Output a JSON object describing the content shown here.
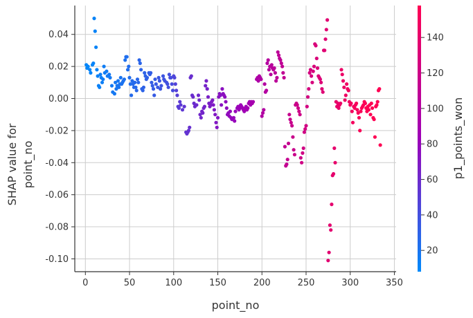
{
  "chart_data": {
    "type": "scatter",
    "xlabel": "point_no",
    "ylabel": [
      "SHAP value for",
      "point_no"
    ],
    "xlim": [
      -12,
      352
    ],
    "ylim": [
      -0.108,
      0.058
    ],
    "x_ticks": [
      0,
      50,
      100,
      150,
      200,
      250,
      300,
      350
    ],
    "x_tick_labels": [
      "0",
      "50",
      "100",
      "150",
      "200",
      "250",
      "300",
      "350"
    ],
    "y_ticks": [
      0.04,
      0.02,
      0.0,
      -0.02,
      -0.04,
      -0.06,
      -0.08,
      -0.1
    ],
    "y_tick_labels": [
      "0.04",
      "0.02",
      "0.00",
      "-0.02",
      "-0.04",
      "-0.06",
      "-0.08",
      "-0.10"
    ],
    "grid": true,
    "colorbar": {
      "label": "p1_points_won",
      "range": [
        8,
        158
      ],
      "ticks": [
        20,
        40,
        60,
        80,
        100,
        120,
        140
      ],
      "tick_labels": [
        "20",
        "40",
        "60",
        "80",
        "100",
        "120",
        "140"
      ],
      "low_color": "#008afb",
      "mid_color": "#9d00b8",
      "high_color": "#ff0052"
    },
    "points": [
      [
        1,
        0.021,
        10
      ],
      [
        2,
        0.019,
        10
      ],
      [
        3,
        0.02,
        10
      ],
      [
        5,
        0.018,
        11
      ],
      [
        6,
        0.016,
        11
      ],
      [
        8,
        0.021,
        11
      ],
      [
        9,
        0.022,
        11
      ],
      [
        10,
        0.05,
        12
      ],
      [
        11,
        0.042,
        12
      ],
      [
        12,
        0.032,
        12
      ],
      [
        13,
        0.018,
        12
      ],
      [
        14,
        0.014,
        13
      ],
      [
        15,
        0.008,
        13
      ],
      [
        16,
        0.007,
        13
      ],
      [
        17,
        0.015,
        14
      ],
      [
        18,
        0.013,
        14
      ],
      [
        19,
        0.01,
        14
      ],
      [
        20,
        0.012,
        15
      ],
      [
        21,
        0.02,
        15
      ],
      [
        22,
        0.016,
        15
      ],
      [
        24,
        0.017,
        16
      ],
      [
        25,
        0.014,
        16
      ],
      [
        27,
        0.015,
        17
      ],
      [
        28,
        0.013,
        17
      ],
      [
        30,
        0.008,
        17
      ],
      [
        31,
        0.004,
        18
      ],
      [
        33,
        0.003,
        18
      ],
      [
        34,
        0.01,
        18
      ],
      [
        35,
        0.006,
        19
      ],
      [
        36,
        0.008,
        19
      ],
      [
        37,
        0.011,
        19
      ],
      [
        38,
        0.007,
        20
      ],
      [
        39,
        0.009,
        20
      ],
      [
        40,
        0.013,
        20
      ],
      [
        41,
        0.009,
        21
      ],
      [
        42,
        0.01,
        21
      ],
      [
        43,
        0.011,
        21
      ],
      [
        44,
        0.012,
        22
      ],
      [
        45,
        0.024,
        22
      ],
      [
        46,
        0.026,
        23
      ],
      [
        47,
        0.026,
        23
      ],
      [
        48,
        0.018,
        23
      ],
      [
        49,
        0.02,
        24
      ],
      [
        50,
        0.013,
        24
      ],
      [
        51,
        0.009,
        24
      ],
      [
        52,
        0.002,
        25
      ],
      [
        53,
        0.011,
        25
      ],
      [
        54,
        0.009,
        25
      ],
      [
        55,
        0.007,
        26
      ],
      [
        56,
        0.01,
        26
      ],
      [
        57,
        0.007,
        26
      ],
      [
        58,
        0.005,
        27
      ],
      [
        59,
        0.012,
        27
      ],
      [
        60,
        0.01,
        27
      ],
      [
        61,
        0.024,
        28
      ],
      [
        62,
        0.022,
        28
      ],
      [
        63,
        0.018,
        29
      ],
      [
        64,
        0.006,
        29
      ],
      [
        65,
        0.005,
        29
      ],
      [
        66,
        0.007,
        30
      ],
      [
        67,
        0.016,
        30
      ],
      [
        68,
        0.014,
        30
      ],
      [
        69,
        0.012,
        31
      ],
      [
        70,
        0.013,
        31
      ],
      [
        72,
        0.016,
        32
      ],
      [
        73,
        0.015,
        32
      ],
      [
        74,
        0.016,
        32
      ],
      [
        75,
        0.01,
        33
      ],
      [
        76,
        0.008,
        33
      ],
      [
        77,
        0.006,
        34
      ],
      [
        78,
        0.002,
        34
      ],
      [
        79,
        0.012,
        34
      ],
      [
        80,
        0.009,
        35
      ],
      [
        82,
        0.007,
        35
      ],
      [
        83,
        0.013,
        36
      ],
      [
        84,
        0.011,
        36
      ],
      [
        85,
        0.006,
        36
      ],
      [
        86,
        0.008,
        37
      ],
      [
        88,
        0.014,
        37
      ],
      [
        89,
        0.012,
        38
      ],
      [
        90,
        0.011,
        38
      ],
      [
        92,
        0.01,
        39
      ],
      [
        93,
        0.009,
        39
      ],
      [
        94,
        0.007,
        40
      ],
      [
        95,
        0.015,
        40
      ],
      [
        96,
        0.013,
        41
      ],
      [
        97,
        0.013,
        41
      ],
      [
        98,
        0.009,
        42
      ],
      [
        99,
        0.005,
        42
      ],
      [
        100,
        0.014,
        45
      ],
      [
        101,
        0.013,
        46
      ],
      [
        102,
        0.009,
        47
      ],
      [
        103,
        0.005,
        48
      ],
      [
        104,
        0.002,
        49
      ],
      [
        105,
        -0.005,
        50
      ],
      [
        106,
        -0.006,
        51
      ],
      [
        107,
        -0.002,
        52
      ],
      [
        108,
        -0.004,
        52
      ],
      [
        110,
        -0.007,
        53
      ],
      [
        112,
        -0.005,
        54
      ],
      [
        114,
        -0.021,
        55
      ],
      [
        115,
        -0.022,
        55
      ],
      [
        116,
        -0.021,
        56
      ],
      [
        117,
        -0.02,
        56
      ],
      [
        118,
        -0.018,
        57
      ],
      [
        119,
        0.013,
        57
      ],
      [
        120,
        0.014,
        58
      ],
      [
        121,
        0.002,
        58
      ],
      [
        122,
        0.001,
        59
      ],
      [
        123,
        -0.003,
        59
      ],
      [
        124,
        -0.005,
        60
      ],
      [
        126,
        -0.004,
        60
      ],
      [
        128,
        0.002,
        61
      ],
      [
        129,
        -0.001,
        61
      ],
      [
        130,
        -0.01,
        62
      ],
      [
        131,
        -0.012,
        62
      ],
      [
        132,
        -0.008,
        63
      ],
      [
        133,
        -0.009,
        63
      ],
      [
        134,
        -0.006,
        63
      ],
      [
        135,
        -0.005,
        64
      ],
      [
        136,
        0.008,
        64
      ],
      [
        137,
        0.011,
        65
      ],
      [
        138,
        0.006,
        65
      ],
      [
        139,
        0.001,
        66
      ],
      [
        140,
        -0.003,
        66
      ],
      [
        141,
        -0.005,
        67
      ],
      [
        142,
        -0.004,
        67
      ],
      [
        143,
        -0.002,
        68
      ],
      [
        144,
        -0.001,
        68
      ],
      [
        145,
        -0.004,
        69
      ],
      [
        146,
        -0.007,
        69
      ],
      [
        147,
        -0.01,
        70
      ],
      [
        148,
        -0.015,
        70
      ],
      [
        149,
        -0.018,
        71
      ],
      [
        150,
        -0.012,
        71
      ],
      [
        151,
        0.001,
        72
      ],
      [
        152,
        0.003,
        72
      ],
      [
        153,
        0.002,
        73
      ],
      [
        154,
        -0.004,
        73
      ],
      [
        155,
        0.006,
        74
      ],
      [
        156,
        0.003,
        74
      ],
      [
        157,
        0.002,
        75
      ],
      [
        158,
        0.001,
        75
      ],
      [
        159,
        -0.002,
        76
      ],
      [
        160,
        -0.006,
        76
      ],
      [
        161,
        -0.01,
        77
      ],
      [
        162,
        -0.009,
        77
      ],
      [
        163,
        -0.011,
        78
      ],
      [
        164,
        -0.008,
        78
      ],
      [
        165,
        -0.012,
        79
      ],
      [
        166,
        -0.013,
        79
      ],
      [
        168,
        -0.012,
        80
      ],
      [
        169,
        -0.014,
        80
      ],
      [
        170,
        -0.008,
        81
      ],
      [
        172,
        -0.006,
        81
      ],
      [
        173,
        -0.005,
        82
      ],
      [
        174,
        -0.007,
        82
      ],
      [
        175,
        -0.006,
        83
      ],
      [
        176,
        -0.004,
        83
      ],
      [
        177,
        -0.005,
        84
      ],
      [
        178,
        -0.006,
        84
      ],
      [
        179,
        -0.007,
        85
      ],
      [
        180,
        -0.008,
        85
      ],
      [
        181,
        -0.006,
        86
      ],
      [
        182,
        -0.005,
        86
      ],
      [
        183,
        -0.007,
        87
      ],
      [
        184,
        -0.006,
        87
      ],
      [
        185,
        -0.003,
        88
      ],
      [
        186,
        -0.002,
        88
      ],
      [
        187,
        -0.004,
        89
      ],
      [
        188,
        -0.002,
        89
      ],
      [
        189,
        -0.003,
        90
      ],
      [
        190,
        -0.002,
        90
      ],
      [
        194,
        0.012,
        95
      ],
      [
        195,
        0.013,
        96
      ],
      [
        196,
        0.011,
        96
      ],
      [
        197,
        0.014,
        97
      ],
      [
        198,
        0.013,
        97
      ],
      [
        199,
        0.012,
        98
      ],
      [
        200,
        -0.011,
        98
      ],
      [
        201,
        -0.009,
        99
      ],
      [
        202,
        -0.007,
        99
      ],
      [
        203,
        0.009,
        100
      ],
      [
        204,
        0.004,
        100
      ],
      [
        205,
        0.005,
        101
      ],
      [
        206,
        0.022,
        101
      ],
      [
        207,
        0.024,
        102
      ],
      [
        208,
        0.018,
        102
      ],
      [
        209,
        0.02,
        103
      ],
      [
        210,
        0.015,
        103
      ],
      [
        211,
        0.021,
        104
      ],
      [
        212,
        0.019,
        104
      ],
      [
        213,
        0.018,
        105
      ],
      [
        214,
        0.019,
        105
      ],
      [
        215,
        0.016,
        106
      ],
      [
        216,
        0.011,
        106
      ],
      [
        217,
        0.013,
        107
      ],
      [
        218,
        0.029,
        107
      ],
      [
        219,
        0.027,
        108
      ],
      [
        220,
        0.025,
        108
      ],
      [
        221,
        0.024,
        109
      ],
      [
        222,
        0.022,
        109
      ],
      [
        223,
        0.02,
        110
      ],
      [
        224,
        0.016,
        110
      ],
      [
        225,
        0.013,
        111
      ],
      [
        226,
        -0.03,
        111
      ],
      [
        227,
        -0.042,
        112
      ],
      [
        228,
        -0.041,
        112
      ],
      [
        229,
        -0.038,
        113
      ],
      [
        230,
        -0.028,
        113
      ],
      [
        231,
        -0.01,
        114
      ],
      [
        232,
        -0.013,
        114
      ],
      [
        233,
        -0.015,
        115
      ],
      [
        234,
        -0.017,
        115
      ],
      [
        235,
        -0.024,
        116
      ],
      [
        236,
        -0.032,
        116
      ],
      [
        237,
        -0.035,
        117
      ],
      [
        238,
        -0.004,
        117
      ],
      [
        239,
        -0.003,
        118
      ],
      [
        240,
        -0.004,
        118
      ],
      [
        241,
        -0.006,
        119
      ],
      [
        242,
        -0.008,
        119
      ],
      [
        243,
        -0.01,
        120
      ],
      [
        244,
        -0.037,
        120
      ],
      [
        245,
        -0.04,
        121
      ],
      [
        246,
        -0.034,
        121
      ],
      [
        247,
        -0.031,
        122
      ],
      [
        248,
        -0.021,
        122
      ],
      [
        249,
        -0.019,
        123
      ],
      [
        250,
        -0.017,
        123
      ],
      [
        251,
        -0.005,
        124
      ],
      [
        252,
        0.001,
        124
      ],
      [
        253,
        0.006,
        125
      ],
      [
        254,
        0.016,
        125
      ],
      [
        255,
        0.018,
        126
      ],
      [
        256,
        0.014,
        126
      ],
      [
        257,
        0.01,
        127
      ],
      [
        258,
        0.017,
        127
      ],
      [
        259,
        0.02,
        128
      ],
      [
        260,
        0.034,
        128
      ],
      [
        261,
        0.033,
        129
      ],
      [
        262,
        0.025,
        129
      ],
      [
        263,
        0.019,
        130
      ],
      [
        264,
        0.014,
        130
      ],
      [
        265,
        0.013,
        131
      ],
      [
        266,
        0.012,
        131
      ],
      [
        267,
        0.01,
        132
      ],
      [
        268,
        0.006,
        132
      ],
      [
        269,
        0.004,
        133
      ],
      [
        270,
        0.03,
        133
      ],
      [
        271,
        0.03,
        134
      ],
      [
        272,
        0.037,
        134
      ],
      [
        273,
        0.043,
        135
      ],
      [
        274,
        0.049,
        135
      ],
      [
        275,
        -0.101,
        136
      ],
      [
        276,
        -0.096,
        136
      ],
      [
        277,
        -0.079,
        137
      ],
      [
        278,
        -0.082,
        137
      ],
      [
        279,
        -0.066,
        138
      ],
      [
        280,
        -0.048,
        138
      ],
      [
        281,
        -0.047,
        139
      ],
      [
        282,
        -0.031,
        139
      ],
      [
        283,
        -0.04,
        140
      ],
      [
        284,
        -0.002,
        140
      ],
      [
        285,
        -0.005,
        141
      ],
      [
        286,
        -0.003,
        141
      ],
      [
        287,
        -0.006,
        142
      ],
      [
        288,
        -0.004,
        142
      ],
      [
        289,
        -0.003,
        143
      ],
      [
        290,
        0.018,
        143
      ],
      [
        291,
        0.015,
        144
      ],
      [
        292,
        0.011,
        144
      ],
      [
        293,
        0.007,
        145
      ],
      [
        294,
        -0.001,
        145
      ],
      [
        295,
        0.002,
        146
      ],
      [
        296,
        0.009,
        146
      ],
      [
        297,
        0.006,
        147
      ],
      [
        298,
        0.005,
        147
      ],
      [
        299,
        -0.002,
        148
      ],
      [
        300,
        -0.004,
        148
      ],
      [
        301,
        -0.003,
        149
      ],
      [
        302,
        -0.008,
        149
      ],
      [
        303,
        -0.015,
        150
      ],
      [
        304,
        -0.005,
        150
      ],
      [
        305,
        -0.006,
        151
      ],
      [
        306,
        -0.004,
        151
      ],
      [
        307,
        -0.003,
        152
      ],
      [
        308,
        -0.007,
        152
      ],
      [
        309,
        -0.009,
        153
      ],
      [
        310,
        -0.012,
        153
      ],
      [
        311,
        -0.02,
        154
      ],
      [
        312,
        -0.008,
        154
      ],
      [
        313,
        -0.006,
        155
      ],
      [
        314,
        -0.005,
        155
      ],
      [
        315,
        -0.004,
        156
      ],
      [
        316,
        -0.002,
        156
      ],
      [
        317,
        -0.003,
        156
      ],
      [
        318,
        -0.006,
        157
      ],
      [
        319,
        -0.008,
        157
      ],
      [
        320,
        -0.005,
        157
      ],
      [
        321,
        -0.007,
        157
      ],
      [
        322,
        -0.004,
        157
      ],
      [
        323,
        -0.01,
        157
      ],
      [
        324,
        -0.003,
        157
      ],
      [
        325,
        -0.006,
        157
      ],
      [
        326,
        -0.012,
        157
      ],
      [
        327,
        -0.013,
        157
      ],
      [
        328,
        -0.024,
        157
      ],
      [
        329,
        -0.005,
        157
      ],
      [
        330,
        -0.004,
        157
      ],
      [
        331,
        -0.002,
        157
      ],
      [
        332,
        0.005,
        157
      ],
      [
        333,
        0.006,
        157
      ],
      [
        334,
        -0.029,
        157
      ]
    ]
  }
}
